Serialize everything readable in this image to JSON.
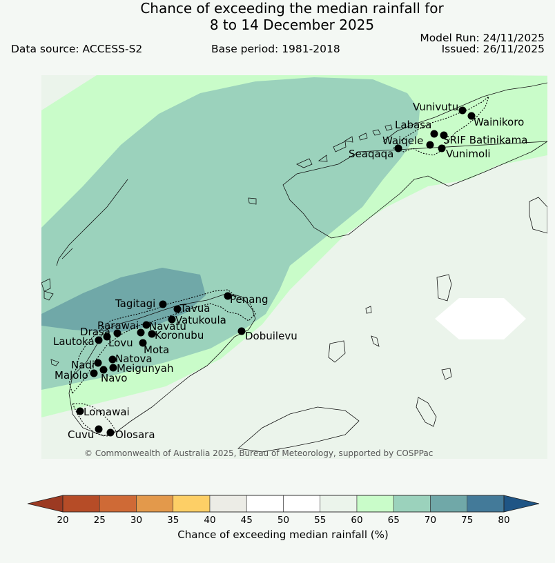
{
  "header": {
    "title_line1": "Chance of exceeding the median rainfall for",
    "title_line2": "8 to 14 December 2025",
    "data_source": "Data source: ACCESS-S2",
    "base_period": "Base period: 1981-2018",
    "model_run": "Model Run: 24/11/2025",
    "issued": "Issued: 26/11/2025"
  },
  "map": {
    "copyright": "© Commonwealth of Australia 2025, Bureau of Meteorology, supported by COSPPac",
    "stations": [
      "Vunivutu",
      "Wainikoro",
      "Labasa",
      "Waiqele",
      "SRIF Batinikama",
      "Seaqaqa",
      "Vunimoli",
      "Tagitagi",
      "Penang",
      "Tavua",
      "Vatukoula",
      "Rarawai",
      "Navatu",
      "Drasa",
      "Koronubu",
      "Lautoka",
      "Lovu",
      "Dobuilevu",
      "Mota",
      "Natova",
      "Nadi",
      "Meigunyah",
      "Malolo",
      "Navo",
      "Lomawai",
      "Cuvu",
      "Olosara"
    ]
  },
  "colorbar": {
    "label": "Chance of exceeding median rainfall (%)",
    "ticks": [
      "20",
      "25",
      "30",
      "35",
      "40",
      "45",
      "50",
      "55",
      "60",
      "65",
      "70",
      "75",
      "80"
    ],
    "colors": [
      "#9c3a22",
      "#b64c27",
      "#cf6a36",
      "#e3994b",
      "#fdcf66",
      "#ecece6",
      "#ffffff",
      "#ffffff",
      "#ebf4eb",
      "#c9fcc9",
      "#9bd2bc",
      "#70a8a8",
      "#437a99",
      "#1f5585"
    ],
    "under_color": "#9c3a22",
    "over_color": "#1f5585"
  },
  "legend_colors": {
    "50-55": "#ffffff",
    "55-60": "#ebf4eb",
    "60-65": "#c9fcc9",
    "65-70": "#9bd2bc",
    "70-75": "#70a8a8"
  }
}
